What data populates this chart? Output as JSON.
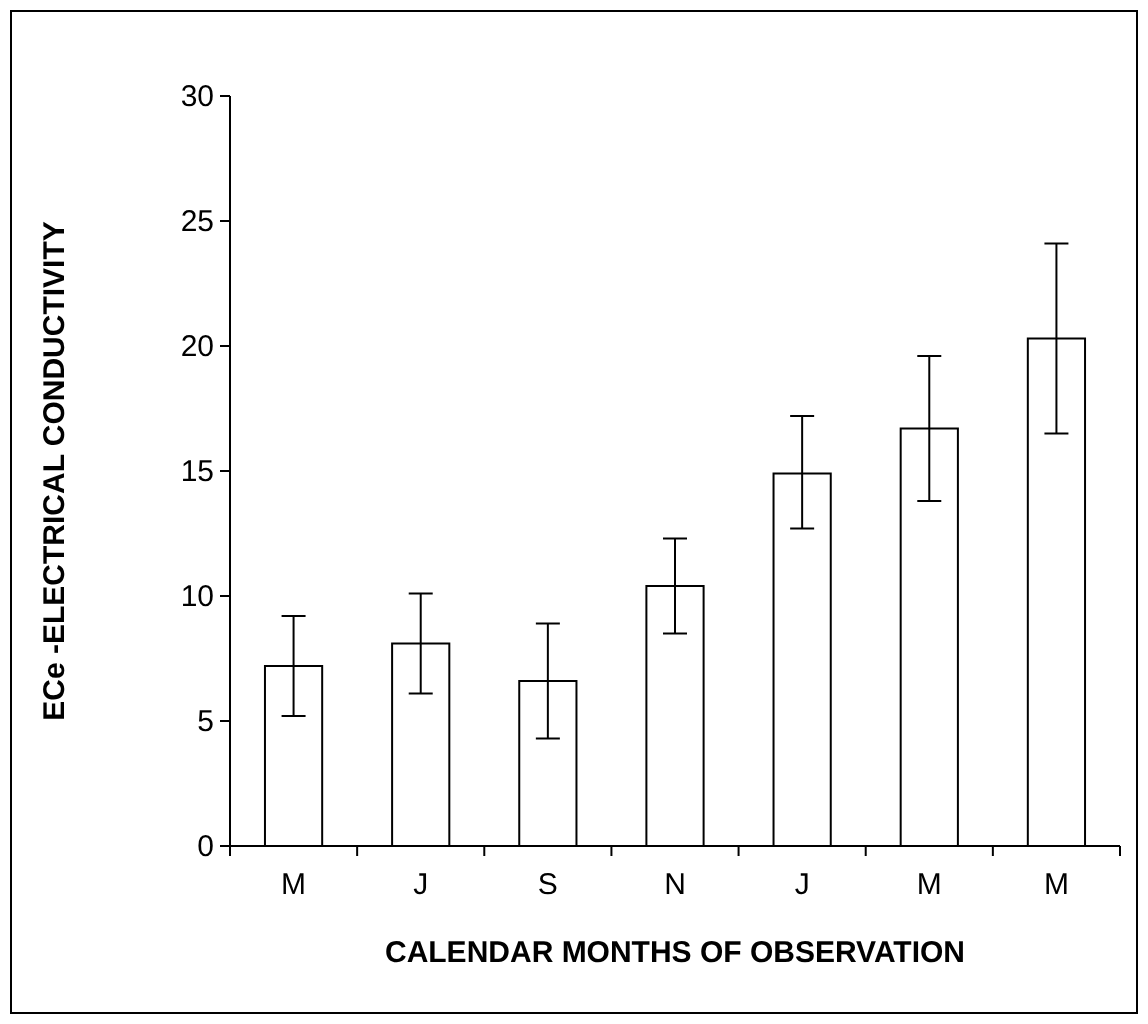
{
  "chart_data": {
    "type": "bar",
    "xlabel": "CALENDAR MONTHS OF OBSERVATION",
    "ylabel": "ECe -ELECTRICAL CONDUCTIVITY",
    "categories": [
      "M",
      "J",
      "S",
      "N",
      "J",
      "M",
      "M"
    ],
    "values": [
      7.2,
      8.1,
      6.6,
      10.4,
      14.9,
      16.7,
      20.3
    ],
    "errors": [
      [
        5.2,
        9.2
      ],
      [
        6.1,
        10.1
      ],
      [
        4.3,
        8.9
      ],
      [
        8.5,
        12.3
      ],
      [
        12.7,
        17.2
      ],
      [
        13.8,
        19.6
      ],
      [
        16.5,
        24.1
      ]
    ],
    "color": "#ffffff",
    "ylim": [
      0,
      30
    ],
    "yticks": [
      0,
      5,
      10,
      15,
      20,
      25,
      30
    ],
    "grid": false
  }
}
